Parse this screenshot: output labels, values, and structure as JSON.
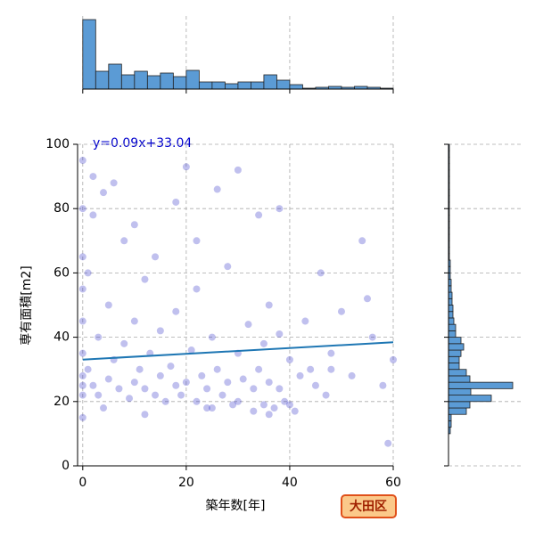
{
  "chart_data": [
    {
      "type": "scatter",
      "xlabel": "築年数[年]",
      "ylabel": "専有面積[m2]",
      "annotation": "y=0.09x+33.04",
      "badge": "大田区",
      "xlim": [
        -1,
        60
      ],
      "ylim": [
        0,
        100
      ],
      "xticks": [
        0,
        20,
        40,
        60
      ],
      "yticks": [
        0,
        20,
        40,
        60,
        80,
        100
      ],
      "grid": true,
      "color": "#3030c8",
      "line_color": "#1f77b4",
      "x": [
        0,
        0,
        0,
        0,
        0,
        0,
        0,
        0,
        0,
        0,
        1,
        1,
        2,
        2,
        3,
        3,
        4,
        5,
        5,
        6,
        7,
        8,
        8,
        9,
        10,
        10,
        11,
        12,
        12,
        13,
        14,
        15,
        15,
        16,
        17,
        18,
        18,
        19,
        20,
        20,
        21,
        22,
        22,
        23,
        24,
        25,
        25,
        26,
        27,
        28,
        28,
        29,
        30,
        30,
        31,
        32,
        33,
        33,
        34,
        35,
        35,
        36,
        36,
        37,
        38,
        38,
        39,
        40,
        40,
        41,
        42,
        43,
        44,
        45,
        46,
        47,
        48,
        50,
        52,
        54,
        56,
        58,
        59,
        60,
        2,
        6,
        10,
        14,
        18,
        22,
        26,
        30,
        34,
        38,
        4,
        12,
        24,
        36,
        48,
        55
      ],
      "y": [
        15,
        22,
        25,
        28,
        35,
        45,
        55,
        65,
        80,
        95,
        30,
        60,
        25,
        90,
        40,
        22,
        85,
        27,
        50,
        33,
        24,
        70,
        38,
        21,
        26,
        45,
        30,
        24,
        58,
        35,
        22,
        28,
        42,
        20,
        31,
        25,
        48,
        22,
        26,
        93,
        36,
        20,
        55,
        28,
        24,
        18,
        40,
        30,
        22,
        26,
        62,
        19,
        20,
        35,
        27,
        44,
        17,
        24,
        30,
        19,
        38,
        26,
        50,
        18,
        24,
        41,
        20,
        19,
        33,
        17,
        28,
        45,
        30,
        25,
        60,
        22,
        35,
        48,
        28,
        70,
        40,
        25,
        7,
        33,
        78,
        88,
        75,
        65,
        82,
        70,
        86,
        92,
        78,
        80,
        18,
        16,
        18,
        16,
        30,
        52
      ],
      "fit": {
        "x": [
          0,
          60
        ],
        "y": [
          33.04,
          38.44
        ]
      }
    },
    {
      "type": "histogram",
      "orientation": "vertical",
      "color": "#5b9bd5",
      "bins": [
        0,
        2.5,
        5,
        7.5,
        10,
        12.5,
        15,
        17.5,
        20,
        22.5,
        25,
        27.5,
        30,
        32.5,
        35,
        37.5,
        40,
        42.5,
        45,
        47.5,
        50,
        52.5,
        55,
        57.5,
        60
      ],
      "counts": [
        78,
        20,
        28,
        16,
        20,
        15,
        18,
        14,
        21,
        8,
        8,
        6,
        8,
        8,
        16,
        10,
        5,
        1,
        2,
        3,
        2,
        3,
        2,
        1
      ],
      "xlim": [
        -1,
        60
      ],
      "xticks": [
        0,
        20,
        40,
        60
      ],
      "ylim": [
        0,
        80
      ],
      "grid": true
    },
    {
      "type": "histogram",
      "orientation": "horizontal",
      "color": "#5b9bd5",
      "bins": [
        10,
        12,
        14,
        16,
        18,
        20,
        22,
        24,
        26,
        28,
        30,
        32,
        34,
        36,
        38,
        40,
        42,
        44,
        46,
        48,
        50,
        52,
        54,
        56,
        58,
        60,
        62,
        64,
        66,
        68,
        70,
        72,
        74,
        76,
        78,
        80,
        82,
        84,
        86,
        88,
        90,
        92,
        94,
        96,
        98,
        100
      ],
      "counts": [
        2,
        3,
        3,
        20,
        24,
        48,
        25,
        72,
        24,
        20,
        12,
        12,
        14,
        17,
        14,
        8,
        8,
        6,
        5,
        5,
        4,
        4,
        3,
        3,
        2,
        2,
        2,
        1,
        1,
        1,
        1,
        1,
        1,
        1,
        1,
        1,
        1,
        1,
        1,
        1,
        1,
        1,
        1,
        1,
        1
      ],
      "ylim": [
        0,
        100
      ],
      "yticks": [
        0,
        20,
        40,
        60,
        80,
        100
      ],
      "xlim": [
        0,
        80
      ],
      "grid": true
    }
  ]
}
